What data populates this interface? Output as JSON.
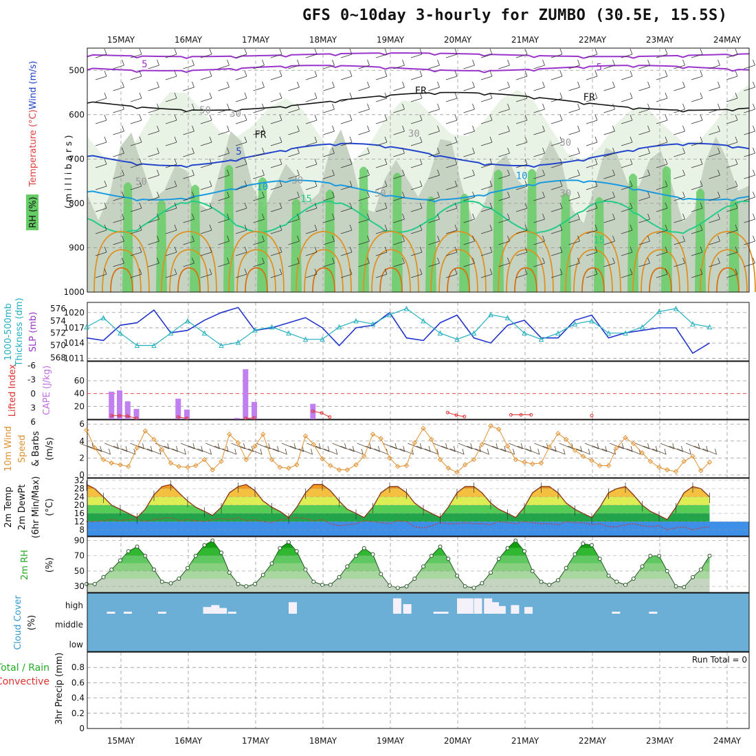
{
  "title": "GFS 0~10day 3-hourly for ZUMBO (30.5E, 15.5S)",
  "colors": {
    "grid": "#999999",
    "rh_light": "#e8f3e6",
    "rh_mid": "#c6d3c3",
    "rh_dark": "#66cc66",
    "temp_purple": "#9933cc",
    "temp_blue": "#2244cc",
    "temp_lightblue": "#1899e0",
    "temp_green": "#22cc88",
    "temp_orange": "#e09020",
    "temp_magenta": "#e0107a",
    "slp": "#2233cc",
    "thickness": "#22b0c0",
    "cape": "#c080f0",
    "li": "#e03030",
    "wind": "#e09030",
    "cloud": "#6baed6",
    "cloud_fill": "#f4f1fb"
  },
  "chart_data": [
    {
      "type": "heatmap",
      "name": "upper-air",
      "dates": [
        "15MAY",
        "16MAY",
        "17MAY",
        "18MAY",
        "19MAY",
        "20MAY",
        "21MAY",
        "22MAY",
        "23MAY",
        "24MAY"
      ],
      "ylabel_prefix": "Wind ",
      "ylabel_unit": "(m/s)",
      "ylabel_temp": "Temperature ",
      "ylabel_temp_unit": "(°C)",
      "ylabel_rh": "RH (%)",
      "ylabel_mb": "( m i l l i b a r s )",
      "yticks": [
        500,
        600,
        700,
        800,
        900,
        1000
      ],
      "ylim": [
        1000,
        450
      ],
      "contour_labels": [
        {
          "text": "5",
          "day": 0.35,
          "mb": 493,
          "color": "temp_purple"
        },
        {
          "text": "5",
          "day": 7.1,
          "mb": 500,
          "color": "temp_purple"
        },
        {
          "text": "FR",
          "day": 4.45,
          "mb": 553,
          "color": "black"
        },
        {
          "text": "FR",
          "day": 6.95,
          "mb": 568,
          "color": "black"
        },
        {
          "text": "FR",
          "day": 2.07,
          "mb": 652,
          "color": "black"
        },
        {
          "text": "5",
          "day": 1.75,
          "mb": 690,
          "color": "temp_blue"
        },
        {
          "text": "10",
          "day": 2.1,
          "mb": 770,
          "color": "temp_lightblue"
        },
        {
          "text": "10",
          "day": 5.95,
          "mb": 745,
          "color": "temp_lightblue"
        },
        {
          "text": "15",
          "day": 2.75,
          "mb": 797,
          "color": "temp_green"
        },
        {
          "text": "15",
          "day": 7.1,
          "mb": 890,
          "color": "temp_green"
        },
        {
          "text": "50",
          "day": 1.25,
          "mb": 597,
          "color": "gray"
        },
        {
          "text": "30",
          "day": 1.7,
          "mb": 605,
          "color": "gray"
        },
        {
          "text": "30",
          "day": 4.35,
          "mb": 650,
          "color": "gray"
        },
        {
          "text": "30",
          "day": 6.6,
          "mb": 670,
          "color": "gray"
        },
        {
          "text": "50",
          "day": 0.3,
          "mb": 758,
          "color": "gray"
        },
        {
          "text": "30",
          "day": 2.62,
          "mb": 755,
          "color": "gray"
        },
        {
          "text": "50",
          "day": 3.85,
          "mb": 785,
          "color": "gray"
        },
        {
          "text": "30",
          "day": 6.6,
          "mb": 785,
          "color": "gray"
        }
      ]
    },
    {
      "type": "line",
      "name": "slp-thickness",
      "ylabel_left": "1000-500mb",
      "ylabel_left2": "Thickness (dm)",
      "ylabel_right": "SLP (mb)",
      "left_ticks": [
        568,
        570,
        572,
        574,
        576
      ],
      "right_ticks": [
        1011,
        1014,
        1017,
        1020
      ],
      "left_ylim": [
        567.5,
        577
      ],
      "right_ylim": [
        1010.5,
        1022
      ],
      "series": [
        {
          "x": [
            0,
            0.25,
            0.5,
            0.75,
            1,
            1.25,
            1.5,
            1.75,
            2,
            2.25,
            2.5,
            2.75,
            3,
            3.25,
            3.5,
            3.75,
            4,
            4.25,
            4.5,
            4.75,
            5,
            5.25,
            5.5,
            5.75,
            6,
            6.25,
            6.5,
            6.75,
            7,
            7.25,
            7.5,
            7.75,
            8,
            8.25,
            8.5,
            8.75,
            9,
            9.25
          ],
          "values": [
            1015,
            1014.5,
            1017.5,
            1018,
            1020.5,
            1016,
            1016.5,
            1018.5,
            1020,
            1021,
            1016.5,
            1017,
            1018,
            1019,
            1017,
            1013.5,
            1017,
            1017.5,
            1020,
            1015,
            1014.5,
            1018,
            1019.5,
            1015,
            1014,
            1017.5,
            1018.5,
            1015,
            1015,
            1018.5,
            1019.5,
            1015,
            1016,
            1016.5,
            1017,
            1017,
            1012,
            1014
          ]
        },
        {
          "x": [
            0,
            0.25,
            0.5,
            0.75,
            1,
            1.25,
            1.5,
            1.75,
            2,
            2.25,
            2.5,
            2.75,
            3,
            3.25,
            3.5,
            3.75,
            4,
            4.25,
            4.5,
            4.75,
            5,
            5.25,
            5.5,
            5.75,
            6,
            6.25,
            6.5,
            6.75,
            7,
            7.25,
            7.5,
            7.75,
            8,
            8.25,
            8.5,
            8.75,
            9,
            9.25
          ],
          "values": [
            573,
            574.5,
            572,
            570,
            570,
            572,
            574,
            572,
            570,
            570.5,
            572.5,
            573,
            572,
            571,
            571,
            573,
            574,
            573.5,
            575,
            576,
            574,
            572,
            571,
            572,
            575,
            574.5,
            572,
            571,
            572,
            573.5,
            574,
            572,
            572,
            573,
            575.5,
            576,
            573.5,
            573
          ]
        }
      ]
    },
    {
      "type": "bar",
      "name": "cape-li",
      "ylabel_left": "Lifted Index",
      "ylabel_right": "CAPE (J/kg)",
      "li_ticks": [
        "-6",
        "-3",
        "0",
        "3",
        "6"
      ],
      "cape_ticks": [
        20,
        40,
        60
      ],
      "cape_ylim": [
        0,
        90
      ],
      "cape_x": [
        0.37,
        0.49,
        0.61,
        0.74,
        1.36,
        1.49,
        2.23,
        2.36,
        2.49,
        3.36
      ],
      "cape_values": [
        43,
        45,
        28,
        16,
        32,
        15,
        2,
        78,
        27,
        24
      ],
      "li_x": [
        0.37,
        0.49,
        0.61,
        0.74,
        1.36,
        1.49,
        2.36,
        2.49,
        3.36,
        3.49,
        3.61,
        5.36,
        5.49,
        5.61,
        6.3,
        6.45,
        6.6,
        7.5
      ],
      "li_values": [
        5.2,
        5.2,
        5.3,
        5.8,
        5.5,
        5.8,
        5.8,
        5.7,
        4.2,
        4.6,
        5.5,
        4.5,
        5.1,
        5.4,
        5.0,
        5.0,
        5.0,
        5.2
      ]
    },
    {
      "type": "line",
      "name": "wind10m",
      "ylabel": "10m Wind",
      "ylabel2": "Speed",
      "ylabel3": "& Barbs",
      "ylabel_unit": "(m/s)",
      "yticks": [
        0,
        2,
        4,
        6
      ],
      "ylim": [
        0,
        6.5
      ],
      "x": [
        0,
        0.12,
        0.25,
        0.37,
        0.5,
        0.62,
        0.75,
        0.87,
        1,
        1.12,
        1.25,
        1.37,
        1.5,
        1.62,
        1.75,
        1.87,
        2,
        2.12,
        2.25,
        2.37,
        2.5,
        2.62,
        2.75,
        2.87,
        3,
        3.12,
        3.25,
        3.37,
        3.5,
        3.62,
        3.75,
        3.87,
        4,
        4.12,
        4.25,
        4.37,
        4.5,
        4.62,
        4.75,
        4.87,
        5,
        5.12,
        5.25,
        5.37,
        5.5,
        5.62,
        5.75,
        5.87,
        6,
        6.12,
        6.25,
        6.37,
        6.5,
        6.62,
        6.75,
        6.87,
        7,
        7.12,
        7.25,
        7.37,
        7.5,
        7.62,
        7.75,
        7.87,
        8,
        8.12,
        8.25,
        8.37,
        8.5,
        8.62,
        8.75,
        8.87,
        9,
        9.12,
        9.25
      ],
      "values": [
        5.3,
        3.2,
        1.8,
        1.4,
        1.2,
        1,
        3.2,
        5.2,
        4.2,
        3,
        1.4,
        1,
        0.9,
        1.1,
        1.8,
        0.6,
        1.6,
        4.8,
        3.8,
        1.8,
        3.4,
        4.8,
        1.8,
        0.9,
        0.8,
        1.2,
        4.6,
        3.6,
        1.9,
        1.1,
        0.6,
        0.6,
        1.2,
        2.2,
        4.8,
        4.3,
        2,
        1,
        1.1,
        3.8,
        5.5,
        4.2,
        1.8,
        0.8,
        0.3,
        1.2,
        1.8,
        3.6,
        5.8,
        5.4,
        3.4,
        1.8,
        1.5,
        1.3,
        1.4,
        3.3,
        4.9,
        4.2,
        2.9,
        2.2,
        1.7,
        1.1,
        1.1,
        3.2,
        4.4,
        3.7,
        2.6,
        1.6,
        0.9,
        0.6,
        0.4,
        1.6,
        2.2,
        0.5,
        1.5
      ]
    },
    {
      "type": "area",
      "name": "temp2m",
      "ylabel": "2m Temp",
      "ylabel2": "2m DewPt",
      "ylabel3": "(6hr Min/Max)",
      "ylabel_unit": "(°C)",
      "yticks": [
        8,
        12,
        16,
        20,
        24,
        28,
        32
      ],
      "ylim": [
        5,
        33
      ],
      "x": [
        0,
        0.12,
        0.25,
        0.37,
        0.5,
        0.62,
        0.75,
        0.87,
        1,
        1.12,
        1.25,
        1.37,
        1.5,
        1.62,
        1.75,
        1.87,
        2,
        2.12,
        2.25,
        2.37,
        2.5,
        2.62,
        2.75,
        2.87,
        3,
        3.12,
        3.25,
        3.37,
        3.5,
        3.62,
        3.75,
        3.87,
        4,
        4.12,
        4.25,
        4.37,
        4.5,
        4.62,
        4.75,
        4.87,
        5,
        5.12,
        5.25,
        5.37,
        5.5,
        5.62,
        5.75,
        5.87,
        6,
        6.12,
        6.25,
        6.37,
        6.5,
        6.62,
        6.75,
        6.87,
        7,
        7.12,
        7.25,
        7.37,
        7.5,
        7.62,
        7.75,
        7.87,
        8,
        8.12,
        8.25,
        8.37,
        8.5,
        8.62,
        8.75,
        8.87,
        9,
        9.12,
        9.25
      ],
      "temp": [
        30,
        28,
        24,
        20,
        18,
        16,
        14,
        18,
        25,
        29,
        30,
        26,
        22,
        19,
        17,
        15,
        19,
        26,
        29,
        30,
        27,
        22,
        19,
        17,
        14,
        19,
        26,
        30,
        30,
        27,
        22,
        18,
        16,
        14,
        19,
        26,
        29,
        29,
        26,
        21,
        18,
        16,
        14,
        19,
        26,
        29,
        29,
        26,
        21,
        18,
        16,
        14,
        19,
        26,
        29,
        29,
        26,
        21,
        18,
        16,
        14,
        19,
        26,
        28,
        29,
        25,
        20,
        17,
        15,
        13,
        19,
        26,
        29,
        28,
        24
      ],
      "dewpt": [
        12,
        12,
        12.5,
        13,
        12.5,
        13,
        13.5,
        12,
        13,
        13.5,
        14,
        12.5,
        13,
        12.5,
        12,
        13,
        13.5,
        13,
        14,
        12.5,
        13,
        12,
        11.5,
        13,
        13.5,
        14,
        13.5,
        12.5,
        13,
        11,
        10,
        10.5,
        11,
        12.5,
        12,
        11.5,
        11,
        12.5,
        12,
        9.5,
        9,
        10,
        11.5,
        11,
        11,
        11.5,
        11,
        11,
        10.5,
        12,
        11.5,
        11,
        12,
        11.5,
        11,
        11,
        10.5,
        12,
        11.5,
        11.5,
        10.5,
        11,
        9.5,
        9.5,
        10.5,
        11,
        10,
        9.5,
        10,
        8,
        9,
        9.5,
        8,
        9,
        9.5
      ]
    },
    {
      "type": "area",
      "name": "rh2m",
      "ylabel": "2m RH",
      "ylabel_unit": "(%)",
      "yticks": [
        30,
        50,
        70,
        90
      ],
      "ylim": [
        22,
        95
      ],
      "x": [
        0,
        0.12,
        0.25,
        0.37,
        0.5,
        0.62,
        0.75,
        0.87,
        1,
        1.12,
        1.25,
        1.37,
        1.5,
        1.62,
        1.75,
        1.87,
        2,
        2.12,
        2.25,
        2.37,
        2.5,
        2.62,
        2.75,
        2.87,
        3,
        3.12,
        3.25,
        3.37,
        3.5,
        3.62,
        3.75,
        3.87,
        4,
        4.12,
        4.25,
        4.37,
        4.5,
        4.62,
        4.75,
        4.87,
        5,
        5.12,
        5.25,
        5.37,
        5.5,
        5.62,
        5.75,
        5.87,
        6,
        6.12,
        6.25,
        6.37,
        6.5,
        6.62,
        6.75,
        6.87,
        7,
        7.12,
        7.25,
        7.37,
        7.5,
        7.62,
        7.75,
        7.87,
        8,
        8.12,
        8.25,
        8.37,
        8.5,
        8.62,
        8.75,
        8.87,
        9,
        9.12,
        9.25
      ],
      "values": [
        33,
        33,
        42,
        52,
        64,
        76,
        82,
        70,
        52,
        36,
        34,
        40,
        54,
        70,
        84,
        90,
        74,
        48,
        33,
        30,
        33,
        45,
        60,
        80,
        88,
        76,
        52,
        36,
        32,
        32,
        42,
        56,
        70,
        80,
        72,
        46,
        31,
        28,
        30,
        40,
        56,
        70,
        82,
        66,
        44,
        30,
        28,
        34,
        48,
        66,
        80,
        90,
        76,
        50,
        36,
        32,
        38,
        54,
        72,
        86,
        84,
        66,
        44,
        36,
        32,
        40,
        56,
        70,
        70,
        50,
        30,
        29,
        42,
        52,
        70
      ]
    },
    {
      "type": "bar",
      "name": "cloud-cover",
      "ylabel": "Cloud Cover",
      "ylabel_unit": "(%)",
      "levels": [
        "high",
        "middle",
        "low"
      ],
      "high_x": [
        0.3,
        0.55,
        1.06,
        1.73,
        1.85,
        1.96,
        2.1,
        2.2,
        3.0,
        4.55,
        4.7,
        5.15,
        5.25,
        5.5,
        5.62,
        5.75,
        5.9,
        6.0,
        6.1,
        6.3,
        6.5,
        7.8,
        8.35
      ],
      "high_values": [
        8,
        8,
        5,
        35,
        45,
        30,
        5,
        0,
        60,
        80,
        50,
        5,
        10,
        80,
        80,
        80,
        80,
        60,
        40,
        45,
        35,
        5,
        5
      ]
    },
    {
      "type": "bar",
      "name": "precip",
      "ylabel": "3hr Precip (mm)",
      "legend_total": "Total / Rain",
      "legend_conv": "Convective",
      "run_total": "Run Total = 0",
      "yticks": [
        "0",
        "0.2",
        "0.4",
        "0.6",
        "0.8"
      ],
      "ylim": [
        0,
        1
      ],
      "values": []
    }
  ]
}
